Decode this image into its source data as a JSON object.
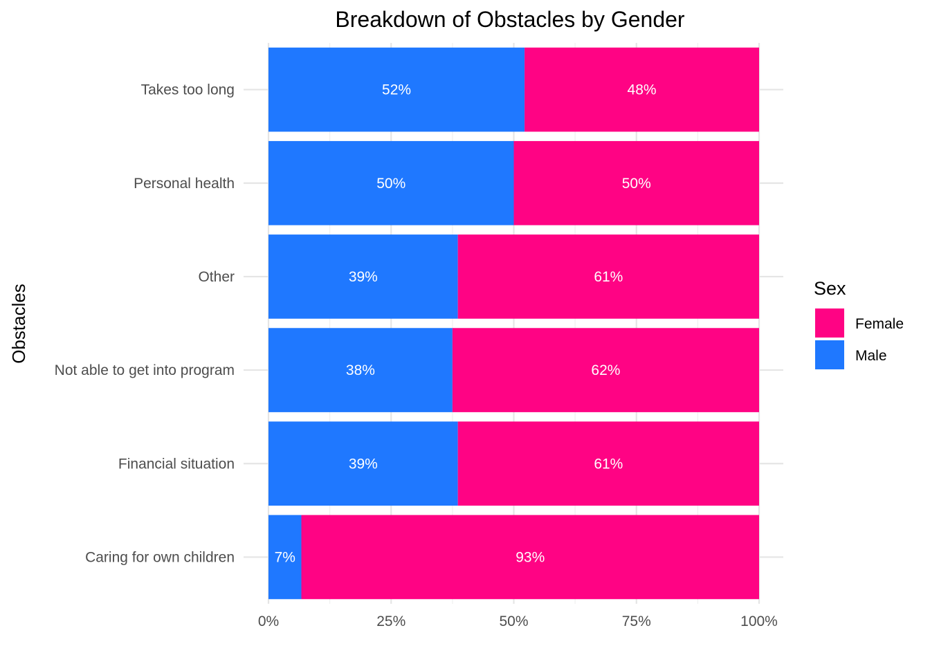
{
  "chart_data": {
    "type": "bar",
    "orientation": "horizontal",
    "stacked": true,
    "title": "Breakdown of Obstacles by Gender",
    "xlabel": "",
    "ylabel": "Obstacles",
    "xlim": [
      0,
      100
    ],
    "x_ticks": [
      "0%",
      "25%",
      "50%",
      "75%",
      "100%"
    ],
    "categories": [
      "Takes too long",
      "Personal health",
      "Other",
      "Not able to get into program",
      "Financial situation",
      "Caring for own children"
    ],
    "series": [
      {
        "name": "Male",
        "color": "#1f78ff",
        "values": [
          52.2,
          50,
          38.6,
          37.5,
          38.6,
          6.7
        ],
        "labels": [
          "52%",
          "50%",
          "39%",
          "38%",
          "39%",
          "7%"
        ]
      },
      {
        "name": "Female",
        "color": "#ff0384",
        "values": [
          47.8,
          50,
          61.4,
          62.5,
          61.4,
          93.3
        ],
        "labels": [
          "48%",
          "50%",
          "61%",
          "62%",
          "61%",
          "93%"
        ]
      }
    ],
    "legend": {
      "title": "Sex",
      "position": "right",
      "entries": [
        {
          "name": "Female",
          "color": "#ff0384"
        },
        {
          "name": "Male",
          "color": "#1f78ff"
        }
      ]
    },
    "grid": true
  }
}
